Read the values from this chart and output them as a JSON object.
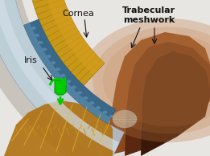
{
  "bg_color": "#e8e6e2",
  "labels": {
    "cornea": "Cornea",
    "iris": "Iris",
    "trabecular": "Trabecular\nmeshwork"
  },
  "colors": {
    "sclera_outer": "#dddbd5",
    "sclera_white": "#e8e6e0",
    "cornea_light": "#c8d8e8",
    "cornea_mid": "#a0bcd0",
    "cornea_dark": "#7090a8",
    "trabecular_dark": "#3a6080",
    "trabecular_mid": "#5080a8",
    "trabecular_light": "#7aA0c0",
    "iris_yellow": "#d4a020",
    "iris_orange": "#c07010",
    "iris_dark": "#8a4808",
    "brown_light": "#a06030",
    "brown_mid": "#7a4020",
    "brown_dark": "#3a1808",
    "green_bright": "#00cc00",
    "green_dark": "#009900",
    "label_color": "#111111",
    "lens_color": "#d8d8c8"
  },
  "figsize": [
    2.61,
    1.94
  ],
  "dpi": 100
}
